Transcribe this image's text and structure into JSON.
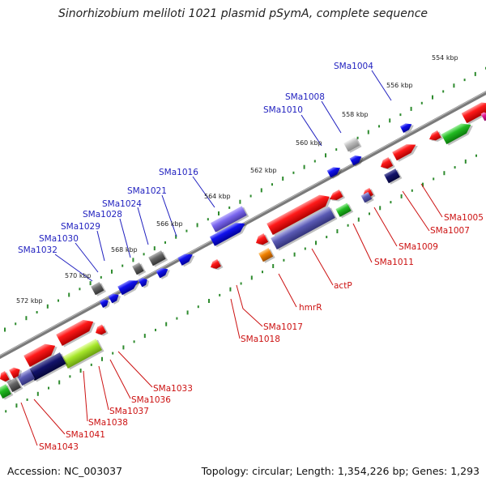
{
  "title": "Sinorhizobium meliloti 1021 plasmid pSymA, complete sequence",
  "footer": {
    "accession": "Accession: NC_003037",
    "summary": "Topology: circular; Length: 1,354,226 bp; Genes: 1,293"
  },
  "colors": {
    "backbone": "#777777",
    "tick": "#2e8b2e",
    "top_label": "#1f1fbf",
    "bottom_label": "#cc1111"
  },
  "scale_labels": [
    "554 kbp",
    "556 kbp",
    "558 kbp",
    "560 kbp",
    "562 kbp",
    "564 kbp",
    "566 kbp",
    "568 kbp",
    "570 kbp",
    "572 kbp"
  ],
  "top_gene_labels": [
    "SMa1004",
    "SMa1008",
    "SMa1010",
    "SMa1016",
    "SMa1021",
    "SMa1024",
    "SMa1028",
    "SMa1029",
    "SMa1030",
    "SMa1032"
  ],
  "bottom_gene_labels": [
    "SMa1005",
    "SMa1007",
    "SMa1009",
    "SMa1011",
    "actP",
    "hmrR",
    "SMa1017",
    "SMa1018",
    "SMa1033",
    "SMa1036",
    "SMa1037",
    "SMa1038",
    "SMa1041",
    "SMa1043"
  ]
}
